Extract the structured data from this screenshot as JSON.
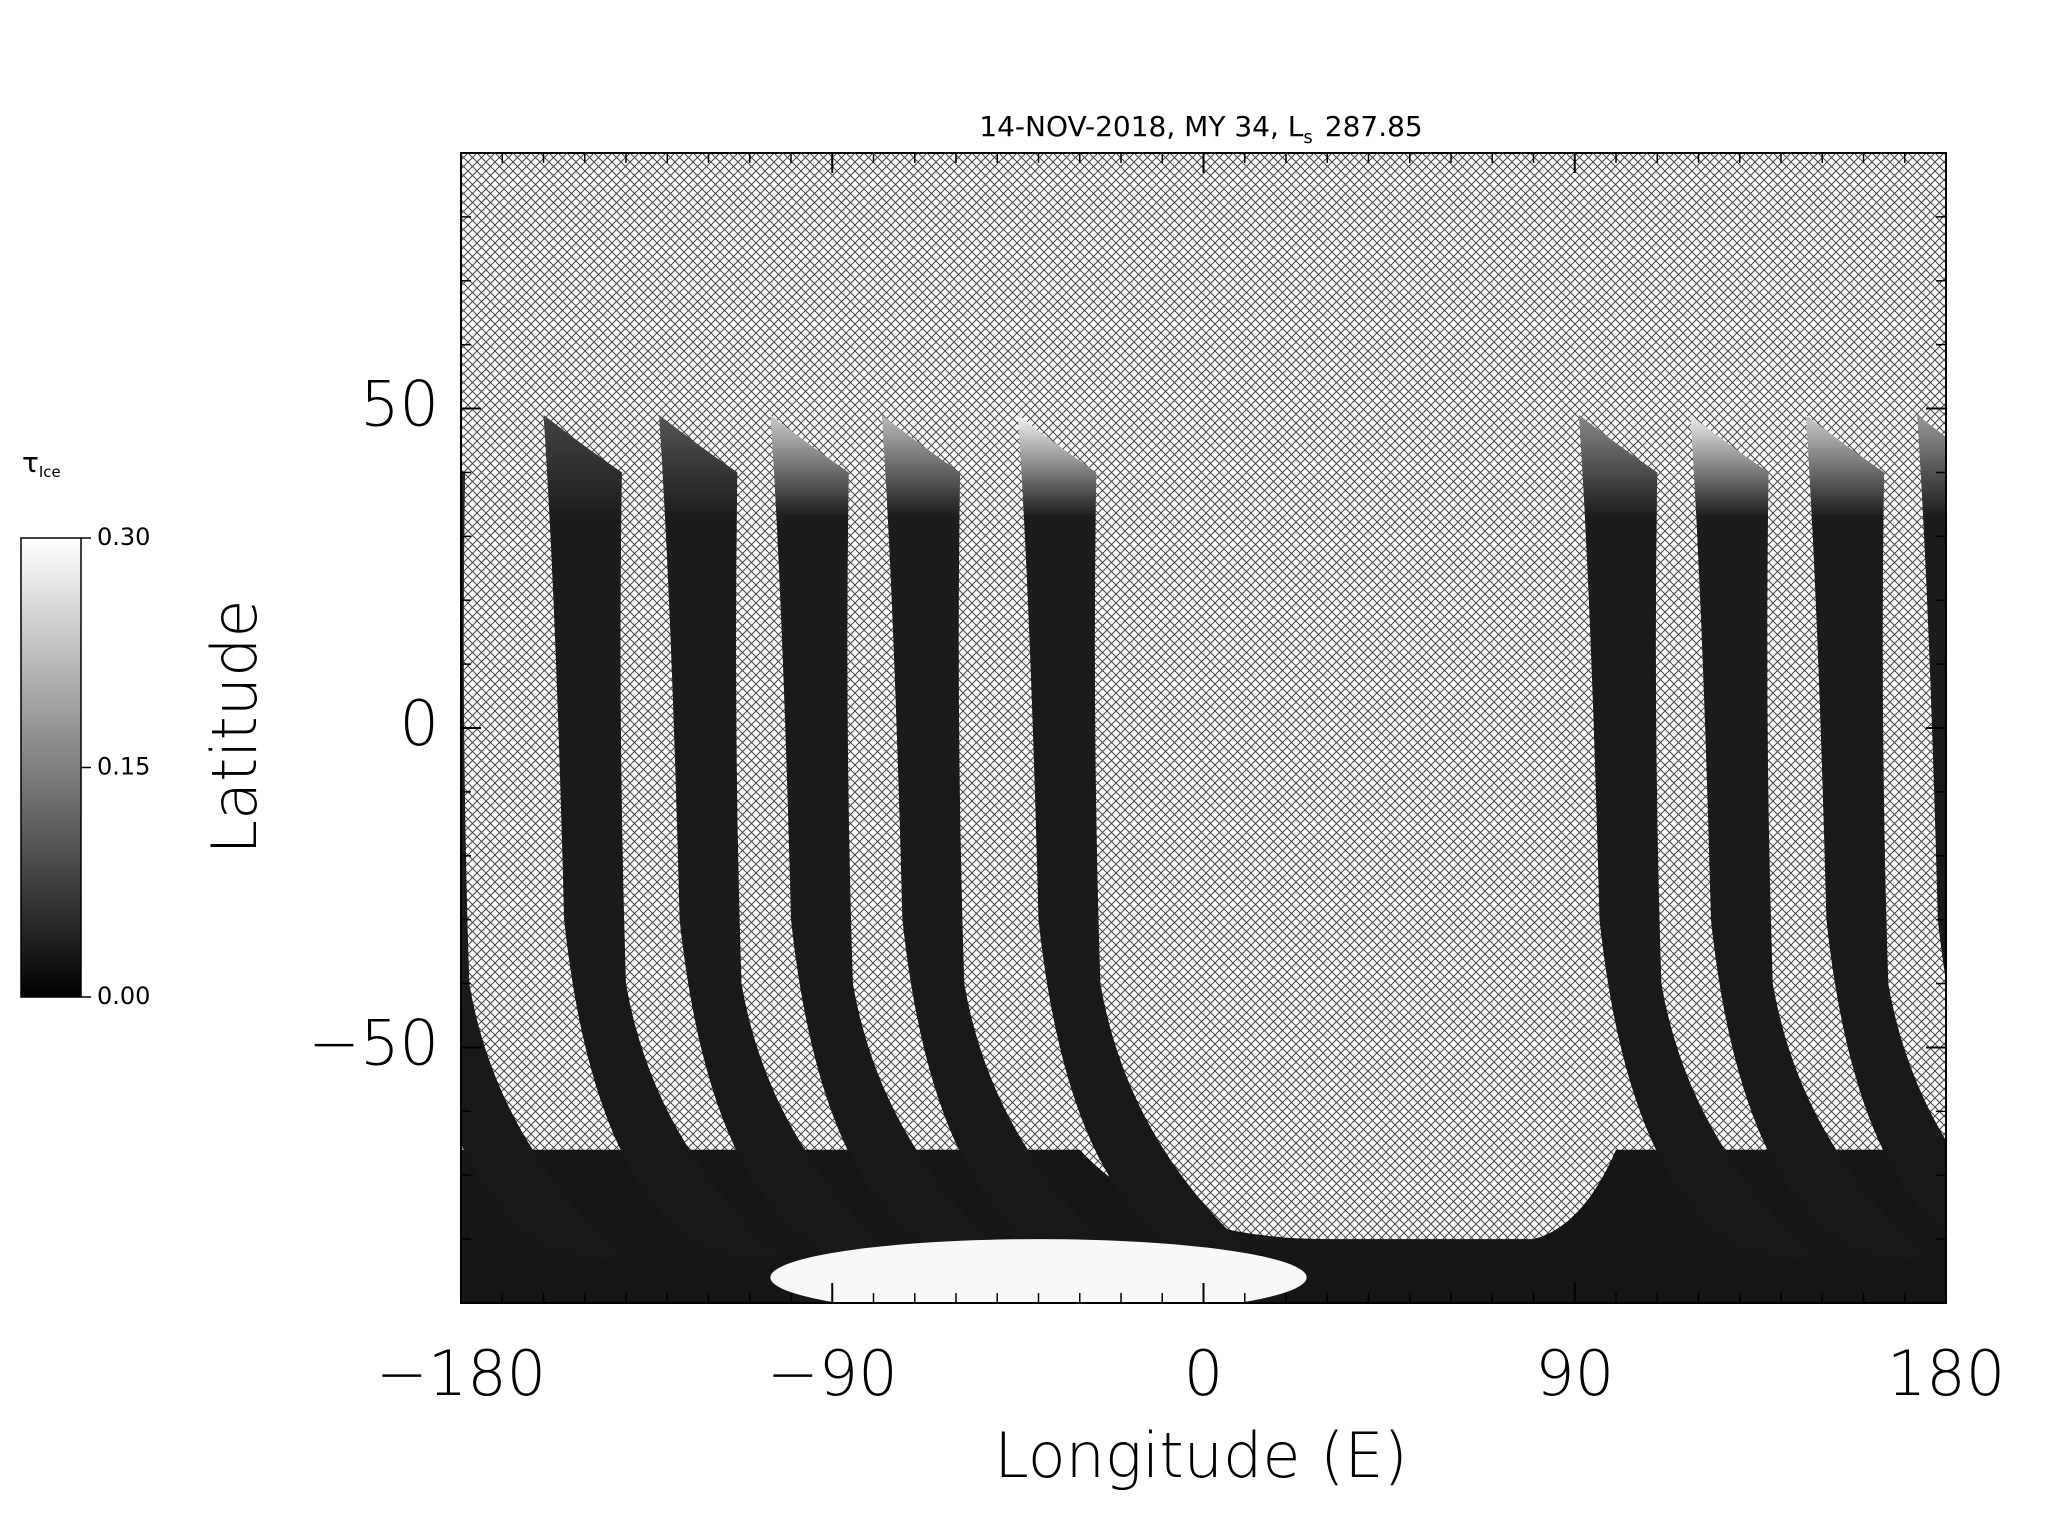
{
  "chart_data": {
    "type": "map",
    "title": {
      "text": "14-NOV-2018, MY 34,  L",
      "subscript": "s",
      "suffix": "287.85"
    },
    "x_label": "Longitude (E)",
    "y_label": "Latitude",
    "xlim": [
      -180,
      180
    ],
    "ylim": [
      -90,
      90
    ],
    "xticks": [
      {
        "value": -180,
        "label": "−180"
      },
      {
        "value": -90,
        "label": "−90"
      },
      0,
      90,
      180
    ],
    "yticks": [
      {
        "value": -50,
        "label": "−50"
      },
      0,
      50
    ],
    "minor_step": 10,
    "colorbar": {
      "label": "τ",
      "label_subscript": "Ice",
      "lim": [
        0,
        0.3
      ],
      "ticks": [
        {
          "value": 0,
          "label": "0.00"
        },
        {
          "value": 0.15,
          "label": "0.15"
        },
        {
          "value": 0.3,
          "label": "0.30"
        }
      ],
      "colors": [
        "#000000",
        "#ffffff"
      ]
    }
  }
}
